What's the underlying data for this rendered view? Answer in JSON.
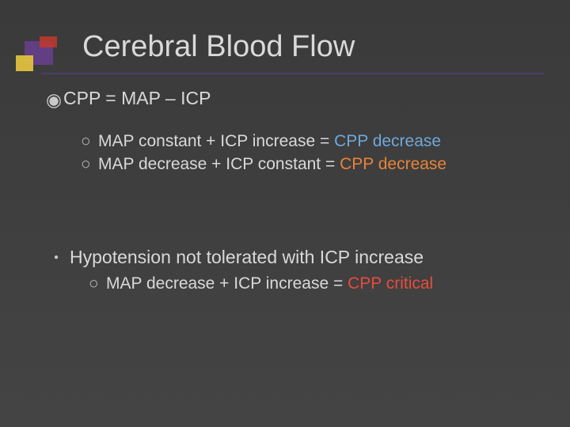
{
  "colors": {
    "background_top": "#3a3a3a",
    "background_bottom": "#444444",
    "text": "#d9d9d9",
    "rule": "#4f3b70",
    "corner_purple": "#6a3f8f",
    "corner_yellow": "#e8c63c",
    "corner_red": "#c0392b",
    "accent_blue": "#6fa8dc",
    "accent_orange": "#e8833a",
    "accent_red": "#e74c3c"
  },
  "title": "Cerebral Blood Flow",
  "main_bullet": {
    "prefix": "CPP",
    "rest": " = MAP – ICP"
  },
  "sub_bullets": [
    {
      "plain": "MAP constant + ICP increase = ",
      "colored": "CPP decrease",
      "color_key": "accent_blue"
    },
    {
      "plain": "MAP decrease + ICP constant = ",
      "colored": "CPP decrease",
      "color_key": "accent_orange"
    }
  ],
  "second_bullet": "Hypotension not tolerated with ICP increase",
  "second_sub": {
    "plain": "MAP decrease + ICP increase = ",
    "colored": "CPP critical",
    "color_key": "accent_red"
  },
  "bullet_glyphs": {
    "filled_ring": "◉",
    "hollow": "○",
    "dot": "●"
  }
}
